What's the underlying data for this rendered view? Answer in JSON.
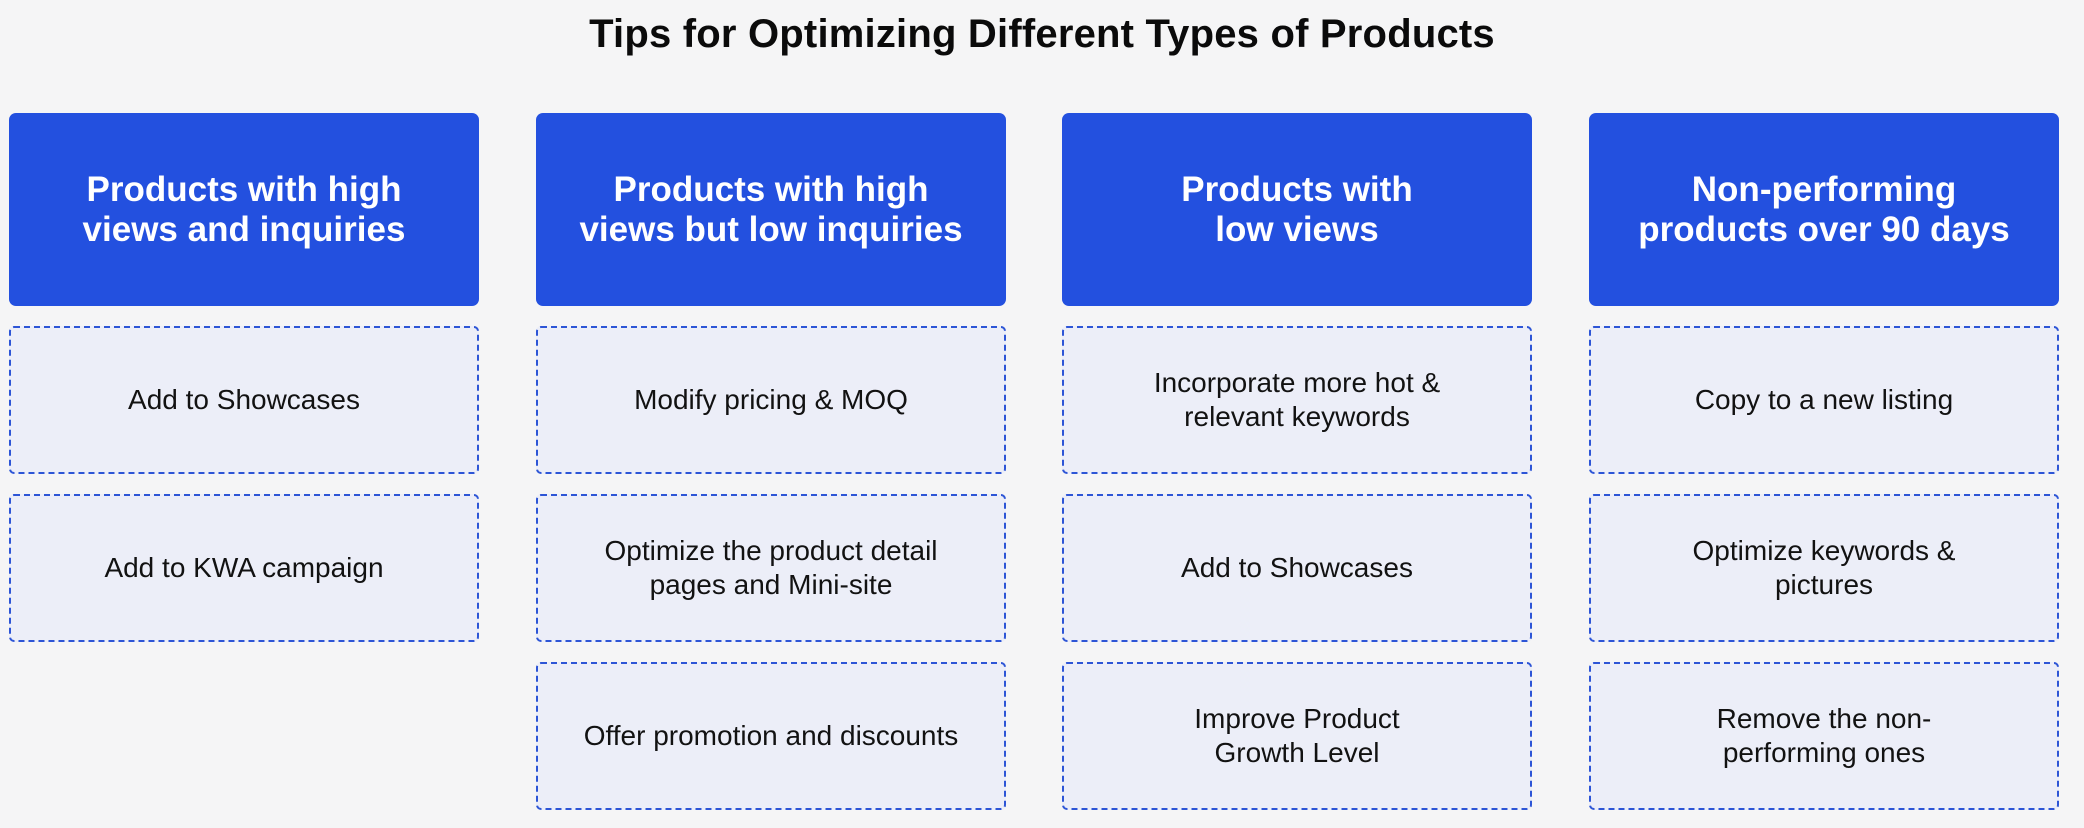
{
  "title": "Tips for Optimizing Different Types of Products",
  "columns": [
    {
      "header": "Products with high views and inquiries",
      "tips": [
        "Add to Showcases",
        "Add to KWA campaign"
      ]
    },
    {
      "header": "Products with high views but low inquiries",
      "tips": [
        "Modify pricing & MOQ",
        "Optimize the product detail pages and Mini-site",
        "Offer promotion and discounts"
      ]
    },
    {
      "header": "Products with low views",
      "tips": [
        "Incorporate more hot & relevant keywords",
        "Add to Showcases",
        "Improve Product Growth Level"
      ]
    },
    {
      "header": "Non-performing products over 90 days",
      "tips": [
        "Copy to a new listing",
        "Optimize keywords & pictures",
        "Remove the non-performing ones"
      ]
    }
  ],
  "colors": {
    "header_bg": "#2350df",
    "header_text": "#ffffff",
    "tip_bg": "#eceef8",
    "tip_border": "#2d55d6",
    "page_bg": "#f5f5f6"
  }
}
